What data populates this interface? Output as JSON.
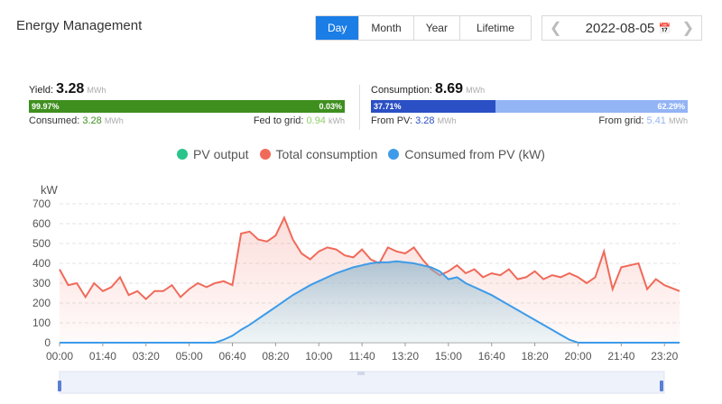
{
  "header": {
    "title": "Energy Management",
    "tabs": [
      "Day",
      "Month",
      "Year",
      "Lifetime"
    ],
    "selected_tab": "Day",
    "date": "2022-08-05"
  },
  "yield": {
    "label": "Yield:",
    "value": "3.28",
    "unit": "MWh",
    "left_pct": "99.97%",
    "right_pct": "0.03%",
    "left_frac": 0.9997,
    "consumed_label": "Consumed:",
    "consumed_value": "3.28",
    "consumed_unit": "MWh",
    "fed_label": "Fed to grid:",
    "fed_value": "0.94",
    "fed_unit": "kWh",
    "color": "#3f8f1f"
  },
  "consumption": {
    "label": "Consumption:",
    "value": "8.69",
    "unit": "MWh",
    "left_pct": "37.71%",
    "right_pct": "62.29%",
    "left_frac": 0.3771,
    "pv_label": "From PV:",
    "pv_value": "3.28",
    "pv_unit": "MWh",
    "grid_label": "From grid:",
    "grid_value": "5.41",
    "grid_unit": "MWh",
    "color_left": "#2b4fc4",
    "color_right": "#93b4f5"
  },
  "chart_data": {
    "type": "line",
    "ylabel": "kW",
    "ylim": [
      0,
      700
    ],
    "yticks": [
      0,
      100,
      200,
      300,
      400,
      500,
      600,
      700
    ],
    "xticks": [
      "00:00",
      "01:40",
      "03:20",
      "05:00",
      "06:40",
      "08:20",
      "10:00",
      "11:40",
      "13:20",
      "15:00",
      "16:40",
      "18:20",
      "20:00",
      "21:40",
      "23:20"
    ],
    "x_start_min": 0,
    "x_step_min": 20,
    "x_max_min": 1435,
    "legend": [
      {
        "name": "PV output",
        "color": "#2bc48a"
      },
      {
        "name": "Total consumption",
        "color": "#f06a5a"
      },
      {
        "name": "Consumed from PV (kW)",
        "color": "#3d9be9"
      }
    ],
    "series": [
      {
        "name": "Total consumption",
        "color": "#f06a5a",
        "values": [
          370,
          290,
          300,
          230,
          300,
          260,
          280,
          330,
          240,
          260,
          220,
          260,
          260,
          290,
          230,
          270,
          300,
          280,
          300,
          310,
          290,
          550,
          560,
          520,
          510,
          540,
          630,
          520,
          450,
          420,
          460,
          480,
          470,
          440,
          430,
          470,
          420,
          400,
          480,
          460,
          450,
          480,
          420,
          370,
          340,
          360,
          390,
          350,
          370,
          330,
          350,
          340,
          370,
          320,
          330,
          360,
          320,
          340,
          330,
          350,
          330,
          300,
          330,
          460,
          270,
          380,
          390,
          400,
          270,
          320,
          290,
          260
        ]
      },
      {
        "name": "Consumed from PV (kW)",
        "color": "#3d9be9",
        "values": [
          0,
          0,
          0,
          0,
          0,
          0,
          0,
          0,
          0,
          0,
          0,
          0,
          0,
          0,
          0,
          0,
          0,
          0,
          0,
          15,
          35,
          65,
          90,
          120,
          150,
          180,
          210,
          240,
          265,
          290,
          310,
          330,
          350,
          365,
          380,
          390,
          400,
          405,
          405,
          410,
          405,
          400,
          390,
          380,
          360,
          320,
          330,
          300,
          280,
          260,
          240,
          215,
          190,
          165,
          140,
          115,
          90,
          65,
          40,
          15,
          0,
          0,
          0,
          0,
          0,
          0,
          0,
          0,
          0,
          0,
          0,
          0
        ]
      }
    ]
  }
}
